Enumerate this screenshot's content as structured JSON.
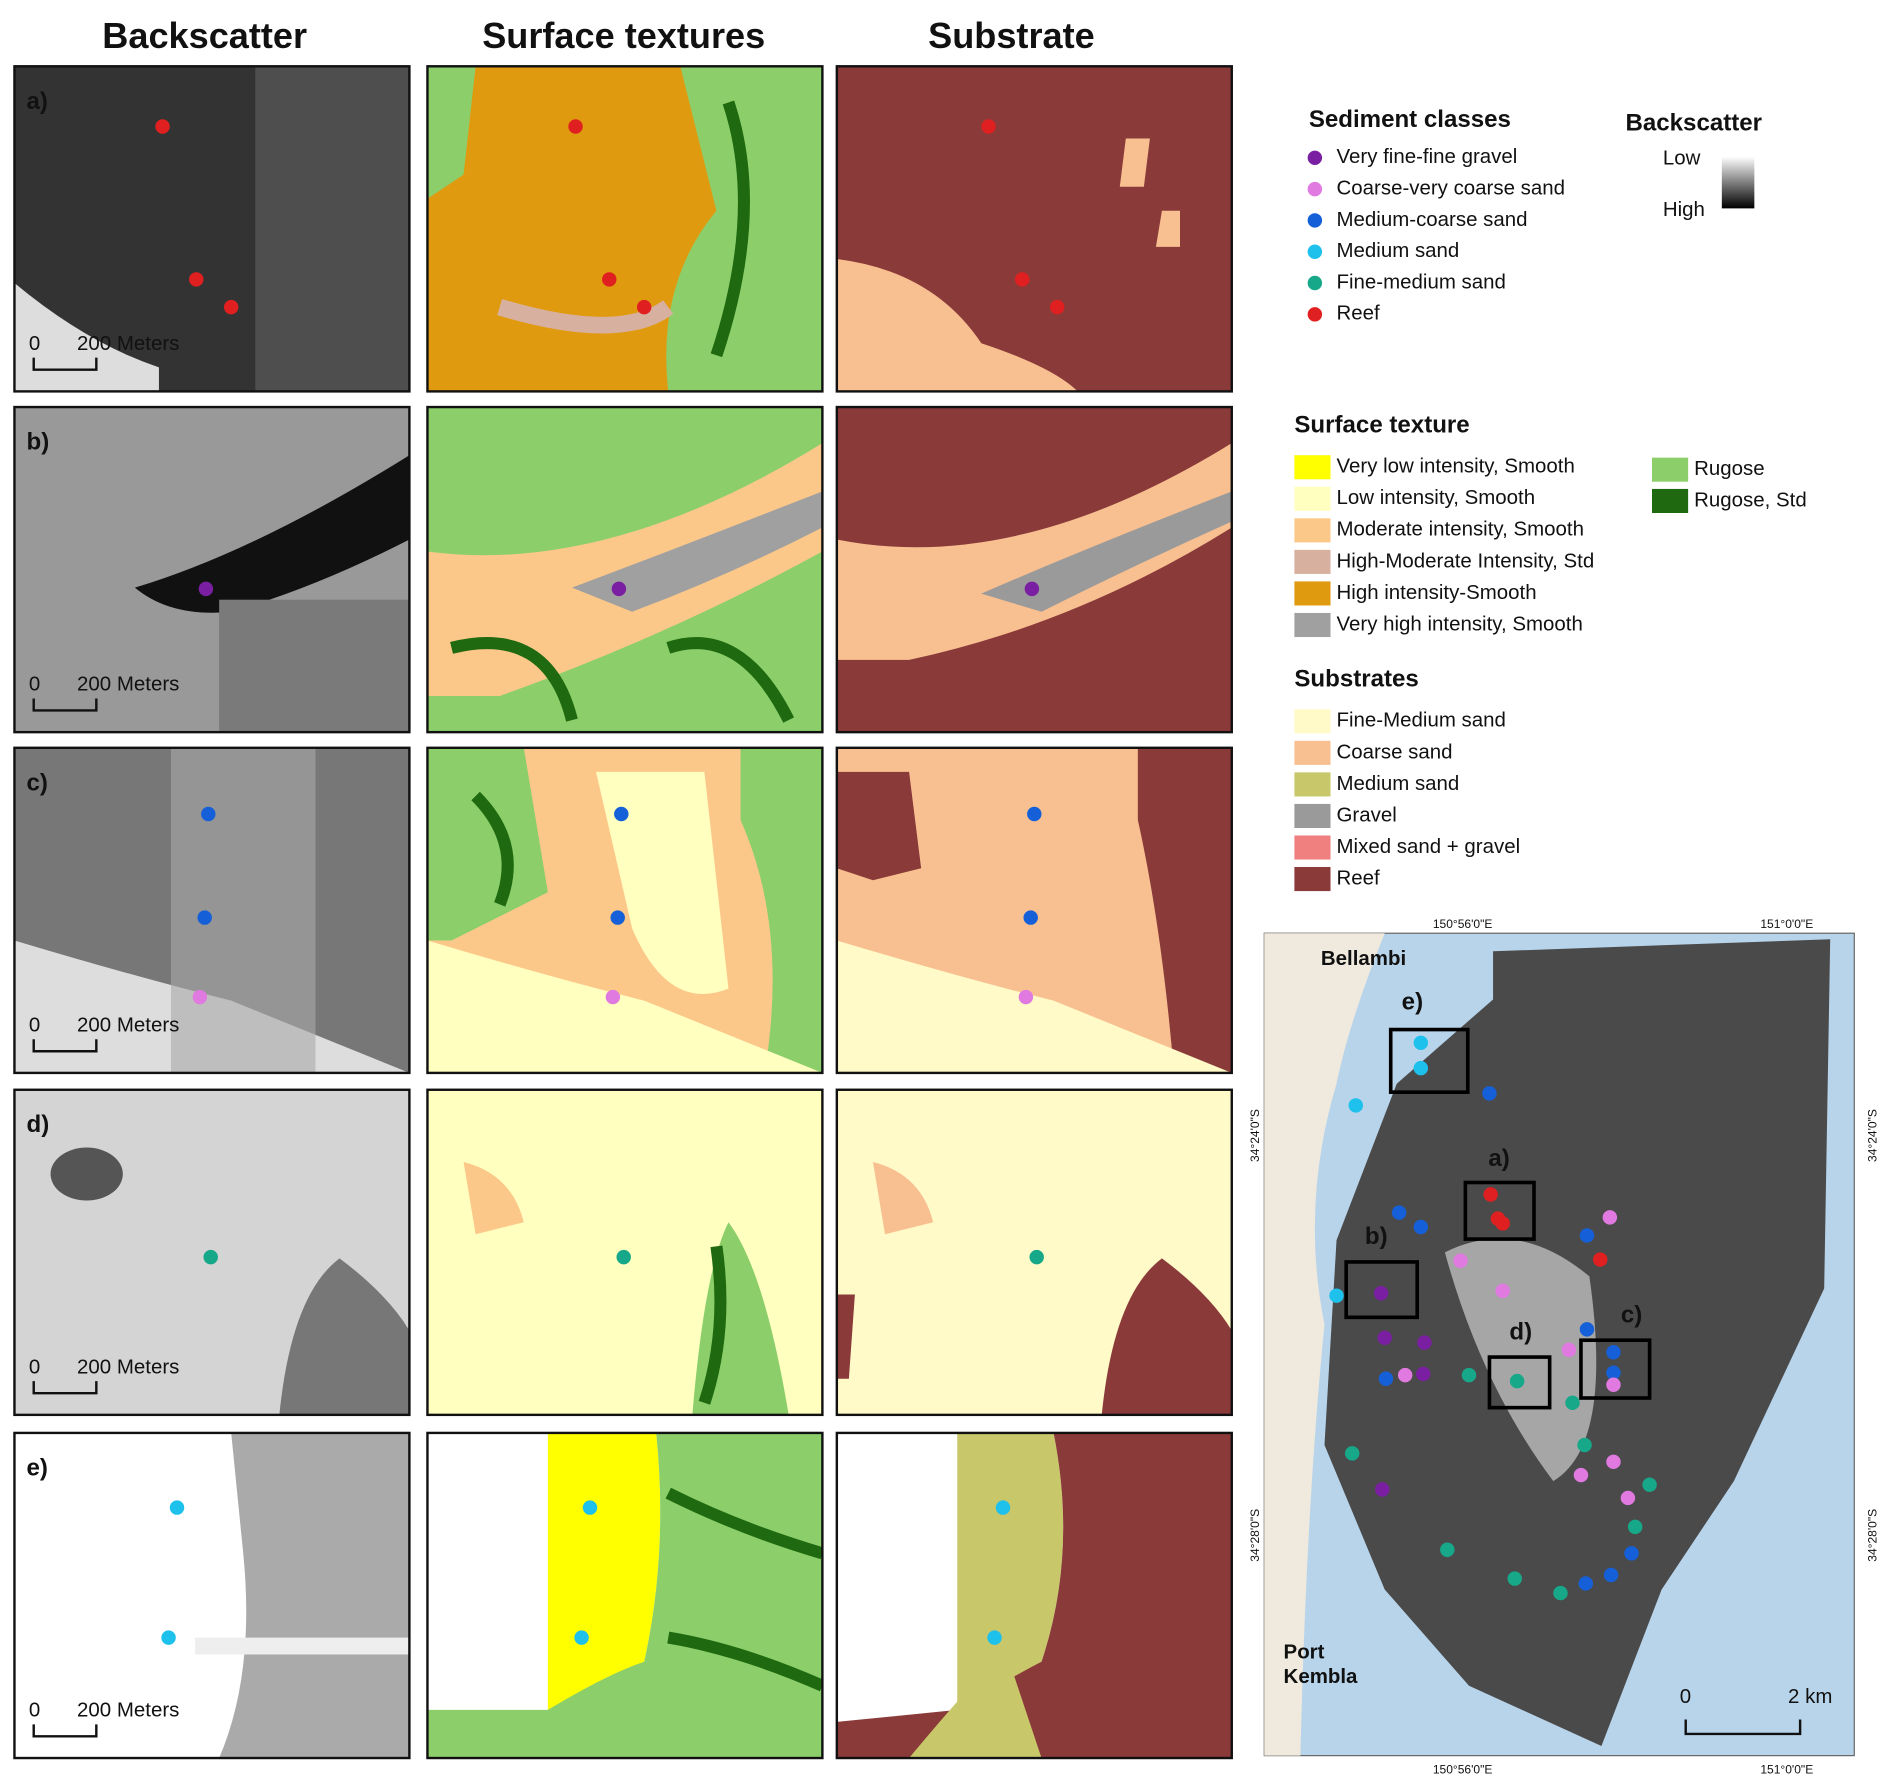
{
  "column_titles": [
    "Backscatter",
    "Surface textures",
    "Substrate"
  ],
  "panels": [
    {
      "label": "a)",
      "scale_zero": "0",
      "scale_text": "200 Meters"
    },
    {
      "label": "b)",
      "scale_zero": "0",
      "scale_text": "200 Meters"
    },
    {
      "label": "c)",
      "scale_zero": "0",
      "scale_text": "200 Meters"
    },
    {
      "label": "d)",
      "scale_zero": "0",
      "scale_text": "200 Meters"
    },
    {
      "label": "e)",
      "scale_zero": "0",
      "scale_text": "200 Meters"
    }
  ],
  "sediment_classes": {
    "title": "Sediment classes",
    "items": [
      {
        "name": "Very fine-fine gravel",
        "color": "#7b1fa2"
      },
      {
        "name": "Coarse-very coarse sand",
        "color": "#e07ae0"
      },
      {
        "name": "Medium-coarse sand",
        "color": "#1560d8"
      },
      {
        "name": "Medium sand",
        "color": "#1ec0ec"
      },
      {
        "name": "Fine-medium sand",
        "color": "#17a88a"
      },
      {
        "name": "Reef",
        "color": "#e02020"
      }
    ]
  },
  "backscatter_legend": {
    "title": "Backscatter",
    "low": "Low",
    "high": "High"
  },
  "surface_texture": {
    "title": "Surface texture",
    "items": [
      {
        "name": "Very low intensity, Smooth",
        "color": "#ffff00"
      },
      {
        "name": "Low intensity, Smooth",
        "color": "#ffffc0"
      },
      {
        "name": "Moderate intensity, Smooth",
        "color": "#fcc88a"
      },
      {
        "name": "High-Moderate Intensity, Std",
        "color": "#d8b0a0"
      },
      {
        "name": "High intensity-Smooth",
        "color": "#e09a10"
      },
      {
        "name": "Very high intensity, Smooth",
        "color": "#a0a0a0"
      },
      {
        "name": "Rugose",
        "color": "#8ccf6a"
      },
      {
        "name": "Rugose, Std",
        "color": "#1f6a10"
      }
    ]
  },
  "substrates": {
    "title": "Substrates",
    "items": [
      {
        "name": "Fine-Medium sand",
        "color": "#fffac8"
      },
      {
        "name": "Coarse sand",
        "color": "#f8c090"
      },
      {
        "name": "Medium sand",
        "color": "#c8c86a"
      },
      {
        "name": "Gravel",
        "color": "#9a9a9a"
      },
      {
        "name": "Mixed sand + gravel",
        "color": "#f08080"
      },
      {
        "name": "Reef",
        "color": "#8b3a3a"
      }
    ]
  },
  "overview_map": {
    "places": [
      "Bellambi",
      "Port",
      "Kembla"
    ],
    "box_labels": [
      "e)",
      "a)",
      "b)",
      "d)",
      "c)"
    ],
    "lon_labels": [
      "150°56'0\"E",
      "151°0'0\"E"
    ],
    "lat_labels": [
      "34°24'0\"S",
      "34°28'0\"S"
    ],
    "scale_zero": "0",
    "scale_text": "2 km"
  }
}
